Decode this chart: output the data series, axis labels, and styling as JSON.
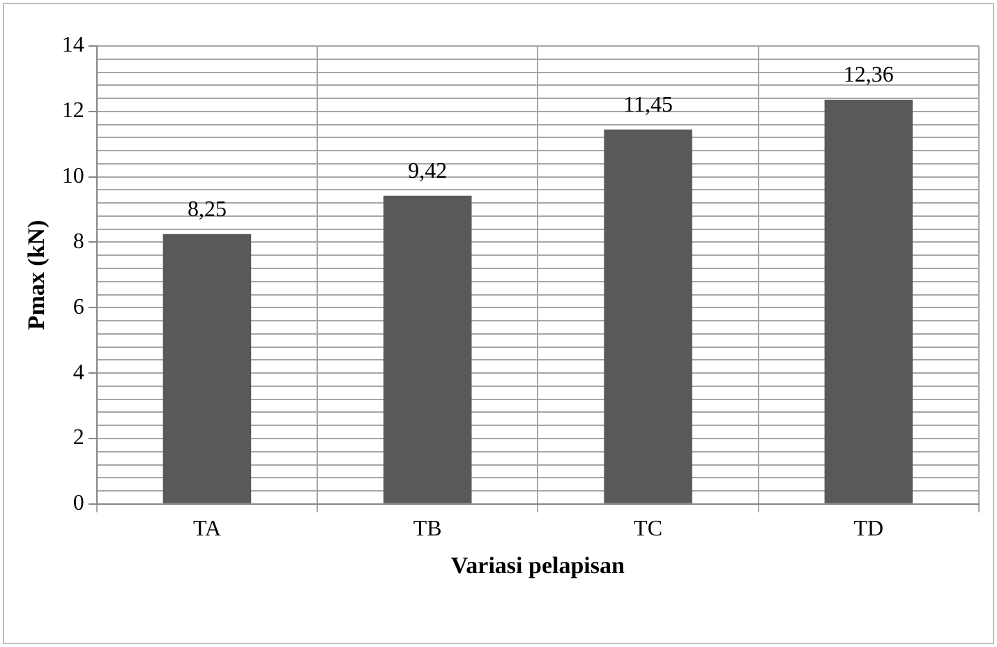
{
  "chart_data": {
    "type": "bar",
    "xlabel": "Variasi pelapisan",
    "ylabel": "Pmax (kN)",
    "categories": [
      "TA",
      "TB",
      "TC",
      "TD"
    ],
    "values": [
      8.25,
      9.42,
      11.45,
      12.36
    ],
    "value_labels": [
      "8,25",
      "9,42",
      "11,45",
      "12,36"
    ],
    "color": "#595959",
    "ylim": [
      0,
      14
    ],
    "yticks": [
      0,
      {
        "value": 0.4,
        "label": null
      },
      {
        "value": 0.8,
        "label": null
      },
      {
        "value": 1.2,
        "label": null
      },
      {
        "value": 1.6,
        "label": null
      },
      2,
      {
        "value": 2.4,
        "label": null
      },
      {
        "value": 2.8,
        "label": null
      },
      {
        "value": 3.2,
        "label": null
      },
      {
        "value": 3.6,
        "label": null
      },
      4,
      {
        "value": 4.4,
        "label": null
      },
      {
        "value": 4.8,
        "label": null
      },
      {
        "value": 5.2,
        "label": null
      },
      {
        "value": 5.6,
        "label": null
      },
      6,
      {
        "value": 6.4,
        "label": null
      },
      {
        "value": 6.8,
        "label": null
      },
      {
        "value": 7.2,
        "label": null
      },
      {
        "value": 7.6,
        "label": null
      },
      8,
      {
        "value": 8.4,
        "label": null
      },
      {
        "value": 8.8,
        "label": null
      },
      {
        "value": 9.2,
        "label": null
      },
      {
        "value": 9.6,
        "label": null
      },
      10,
      {
        "value": 10.4,
        "label": null
      },
      {
        "value": 10.8,
        "label": null
      },
      {
        "value": 11.2,
        "label": null
      },
      {
        "value": 11.6,
        "label": null
      },
      12,
      {
        "value": 12.4,
        "label": null
      },
      {
        "value": 12.8,
        "label": null
      },
      {
        "value": 13.2,
        "label": null
      },
      {
        "value": 13.6,
        "label": null
      },
      14
    ],
    "grid": true,
    "legend": false
  }
}
